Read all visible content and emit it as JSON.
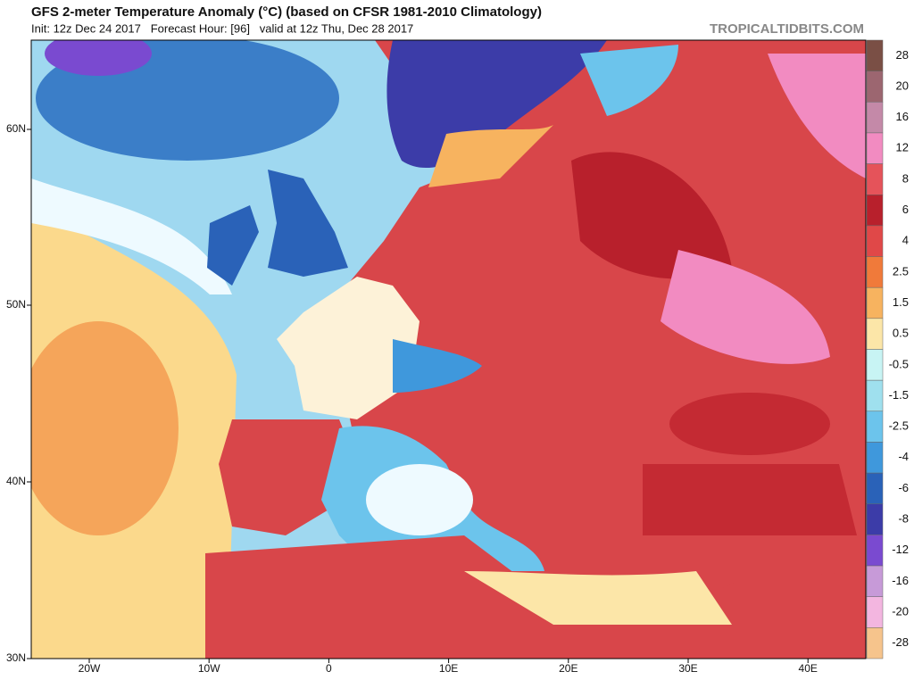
{
  "header": {
    "title": "GFS 2-meter Temperature Anomaly (°C) (based on CFSR 1981-2010 Climatology)",
    "subtitle": "Init: 12z Dec 24 2017   Forecast Hour: [96]   valid at 12z Thu, Dec 28 2017",
    "site": "TROPICALTIDBITS.COM"
  },
  "map": {
    "lat_labels": [
      "60N",
      "50N",
      "40N",
      "30N"
    ],
    "lon_labels": [
      "20W",
      "10W",
      "0",
      "10E",
      "20E",
      "30E",
      "40E"
    ]
  },
  "colorbar": {
    "labels": [
      "28",
      "20",
      "16",
      "12",
      "8",
      "6",
      "4",
      "2.5",
      "1.5",
      "0.5",
      "-0.5",
      "-1.5",
      "-2.5",
      "-4",
      "-6",
      "-8",
      "-12",
      "-16",
      "-20",
      "-28"
    ],
    "colors": [
      "#7a4f45",
      "#9c6670",
      "#c489a8",
      "#f28bc1",
      "#e5535a",
      "#b8202c",
      "#e04848",
      "#f07a3a",
      "#f7b35f",
      "#fce6a8",
      "#c8f4f4",
      "#9fe0ee",
      "#6cc4ec",
      "#3f98dc",
      "#2a62b8",
      "#3c3ca8",
      "#7a4ad0",
      "#c79ad8",
      "#f3b6e0",
      "#f6c48c"
    ]
  }
}
